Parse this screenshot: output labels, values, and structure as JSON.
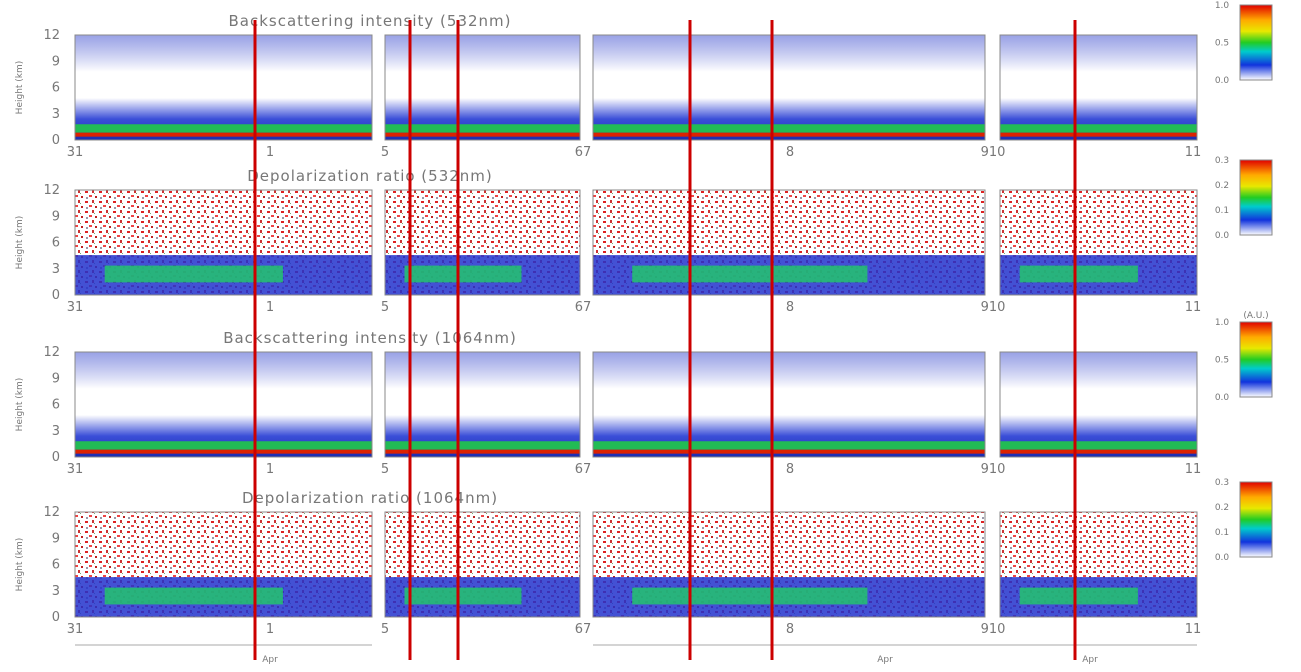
{
  "panels": [
    {
      "title": "Backscattering intensity (532nm)",
      "colorbar_labels": [
        "1.0",
        "0.5",
        "0.0"
      ]
    },
    {
      "title": "Depolarization ratio (532nm)",
      "colorbar_labels": [
        "0.3",
        "0.2",
        "0.1",
        "0.0"
      ]
    },
    {
      "title": "Backscattering intensity (1064nm)",
      "colorbar_unit": "(A.U.)",
      "colorbar_labels": [
        "1.0",
        "0.5",
        "0.0"
      ]
    },
    {
      "title": "Depolarization ratio (1064nm)",
      "colorbar_labels": [
        "0.3",
        "0.2",
        "0.1",
        "0.0"
      ]
    }
  ],
  "y_label": "Height (km)",
  "y_ticks": [
    "12",
    "9",
    "6",
    "3",
    "0"
  ],
  "x_ticks": [
    "31",
    "1",
    "5",
    "67",
    "8",
    "910",
    "11"
  ],
  "month_labels": [
    "Apr",
    "Apr",
    "Apr"
  ]
}
